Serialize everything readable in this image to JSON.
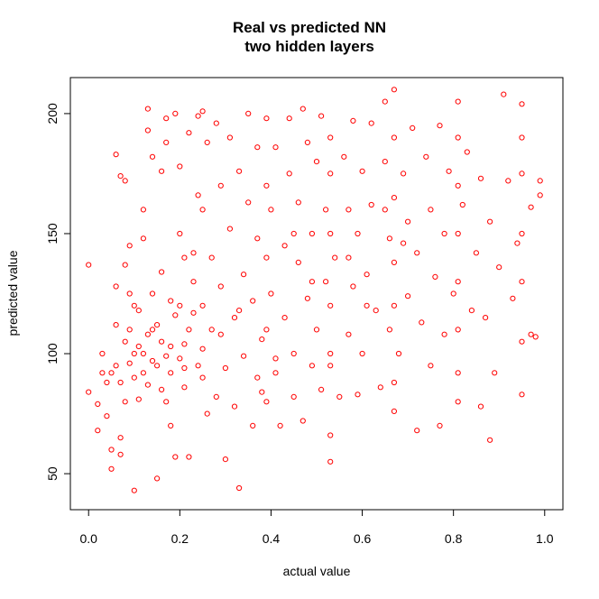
{
  "chart_data": {
    "type": "scatter",
    "title": "Real vs predicted NN",
    "subtitle": "two hidden layers",
    "xlabel": "actual value",
    "ylabel": "predicted value",
    "xlim": [
      -0.04,
      1.04
    ],
    "ylim": [
      35,
      215
    ],
    "xticks": [
      "0.0",
      "0.2",
      "0.4",
      "0.6",
      "0.8",
      "1.0"
    ],
    "yticks": [
      "50",
      "100",
      "150",
      "200"
    ],
    "marker": "open-circle",
    "color": "#ff0000",
    "grid": false,
    "legend": "none",
    "points": [
      [
        0.0,
        137
      ],
      [
        0.0,
        84
      ],
      [
        0.02,
        68
      ],
      [
        0.02,
        79
      ],
      [
        0.03,
        92
      ],
      [
        0.03,
        100
      ],
      [
        0.04,
        74
      ],
      [
        0.04,
        88
      ],
      [
        0.05,
        52
      ],
      [
        0.05,
        60
      ],
      [
        0.06,
        183
      ],
      [
        0.06,
        112
      ],
      [
        0.06,
        128
      ],
      [
        0.07,
        174
      ],
      [
        0.07,
        65
      ],
      [
        0.07,
        58
      ],
      [
        0.08,
        137
      ],
      [
        0.08,
        172
      ],
      [
        0.09,
        145
      ],
      [
        0.09,
        96
      ],
      [
        0.1,
        43
      ],
      [
        0.1,
        120
      ],
      [
        0.11,
        103
      ],
      [
        0.11,
        81
      ],
      [
        0.12,
        160
      ],
      [
        0.12,
        148
      ],
      [
        0.13,
        202
      ],
      [
        0.13,
        193
      ],
      [
        0.14,
        182
      ],
      [
        0.14,
        110
      ],
      [
        0.15,
        48
      ],
      [
        0.15,
        95
      ],
      [
        0.16,
        176
      ],
      [
        0.16,
        134
      ],
      [
        0.17,
        188
      ],
      [
        0.17,
        198
      ],
      [
        0.18,
        70
      ],
      [
        0.18,
        122
      ],
      [
        0.19,
        200
      ],
      [
        0.19,
        57
      ],
      [
        0.2,
        150
      ],
      [
        0.2,
        178
      ],
      [
        0.21,
        104
      ],
      [
        0.21,
        86
      ],
      [
        0.22,
        57
      ],
      [
        0.22,
        192
      ],
      [
        0.23,
        142
      ],
      [
        0.23,
        117
      ],
      [
        0.24,
        199
      ],
      [
        0.24,
        166
      ],
      [
        0.25,
        201
      ],
      [
        0.25,
        160
      ],
      [
        0.25,
        120
      ],
      [
        0.25,
        90
      ],
      [
        0.26,
        75
      ],
      [
        0.26,
        188
      ],
      [
        0.27,
        140
      ],
      [
        0.27,
        110
      ],
      [
        0.28,
        196
      ],
      [
        0.28,
        82
      ],
      [
        0.29,
        170
      ],
      [
        0.29,
        128
      ],
      [
        0.3,
        56
      ],
      [
        0.3,
        94
      ],
      [
        0.31,
        190
      ],
      [
        0.31,
        152
      ],
      [
        0.32,
        115
      ],
      [
        0.32,
        78
      ],
      [
        0.33,
        44
      ],
      [
        0.33,
        176
      ],
      [
        0.34,
        133
      ],
      [
        0.34,
        99
      ],
      [
        0.35,
        200
      ],
      [
        0.35,
        163
      ],
      [
        0.36,
        70
      ],
      [
        0.36,
        122
      ],
      [
        0.37,
        186
      ],
      [
        0.37,
        148
      ],
      [
        0.38,
        106
      ],
      [
        0.38,
        84
      ],
      [
        0.39,
        198
      ],
      [
        0.39,
        170
      ],
      [
        0.39,
        140
      ],
      [
        0.39,
        110
      ],
      [
        0.39,
        80
      ],
      [
        0.4,
        160
      ],
      [
        0.4,
        125
      ],
      [
        0.41,
        92
      ],
      [
        0.41,
        186
      ],
      [
        0.42,
        70
      ],
      [
        0.43,
        145
      ],
      [
        0.43,
        115
      ],
      [
        0.44,
        198
      ],
      [
        0.44,
        175
      ],
      [
        0.45,
        100
      ],
      [
        0.45,
        82
      ],
      [
        0.46,
        163
      ],
      [
        0.46,
        138
      ],
      [
        0.47,
        202
      ],
      [
        0.47,
        72
      ],
      [
        0.48,
        188
      ],
      [
        0.48,
        123
      ],
      [
        0.49,
        150
      ],
      [
        0.49,
        95
      ],
      [
        0.5,
        180
      ],
      [
        0.5,
        110
      ],
      [
        0.51,
        85
      ],
      [
        0.51,
        199
      ],
      [
        0.52,
        160
      ],
      [
        0.52,
        130
      ],
      [
        0.53,
        190
      ],
      [
        0.53,
        175
      ],
      [
        0.53,
        150
      ],
      [
        0.53,
        120
      ],
      [
        0.53,
        95
      ],
      [
        0.53,
        66
      ],
      [
        0.53,
        55
      ],
      [
        0.54,
        140
      ],
      [
        0.55,
        82
      ],
      [
        0.56,
        182
      ],
      [
        0.57,
        160
      ],
      [
        0.57,
        108
      ],
      [
        0.58,
        128
      ],
      [
        0.58,
        197
      ],
      [
        0.59,
        150
      ],
      [
        0.59,
        83
      ],
      [
        0.6,
        176
      ],
      [
        0.6,
        100
      ],
      [
        0.61,
        133
      ],
      [
        0.62,
        196
      ],
      [
        0.62,
        162
      ],
      [
        0.63,
        118
      ],
      [
        0.64,
        86
      ],
      [
        0.65,
        205
      ],
      [
        0.65,
        180
      ],
      [
        0.66,
        148
      ],
      [
        0.66,
        110
      ],
      [
        0.67,
        210
      ],
      [
        0.67,
        190
      ],
      [
        0.67,
        165
      ],
      [
        0.67,
        138
      ],
      [
        0.67,
        120
      ],
      [
        0.67,
        88
      ],
      [
        0.67,
        76
      ],
      [
        0.68,
        100
      ],
      [
        0.69,
        175
      ],
      [
        0.7,
        155
      ],
      [
        0.7,
        124
      ],
      [
        0.71,
        194
      ],
      [
        0.72,
        68
      ],
      [
        0.72,
        142
      ],
      [
        0.73,
        113
      ],
      [
        0.74,
        182
      ],
      [
        0.75,
        160
      ],
      [
        0.75,
        95
      ],
      [
        0.76,
        132
      ],
      [
        0.77,
        195
      ],
      [
        0.77,
        70
      ],
      [
        0.78,
        150
      ],
      [
        0.78,
        108
      ],
      [
        0.79,
        176
      ],
      [
        0.8,
        125
      ],
      [
        0.81,
        205
      ],
      [
        0.81,
        190
      ],
      [
        0.81,
        170
      ],
      [
        0.81,
        150
      ],
      [
        0.81,
        130
      ],
      [
        0.81,
        110
      ],
      [
        0.81,
        92
      ],
      [
        0.81,
        80
      ],
      [
        0.82,
        162
      ],
      [
        0.83,
        184
      ],
      [
        0.84,
        118
      ],
      [
        0.85,
        142
      ],
      [
        0.86,
        173
      ],
      [
        0.86,
        78
      ],
      [
        0.87,
        115
      ],
      [
        0.88,
        64
      ],
      [
        0.88,
        155
      ],
      [
        0.89,
        92
      ],
      [
        0.9,
        136
      ],
      [
        0.91,
        208
      ],
      [
        0.92,
        172
      ],
      [
        0.93,
        123
      ],
      [
        0.94,
        146
      ],
      [
        0.95,
        204
      ],
      [
        0.95,
        190
      ],
      [
        0.95,
        175
      ],
      [
        0.95,
        150
      ],
      [
        0.95,
        130
      ],
      [
        0.95,
        105
      ],
      [
        0.95,
        83
      ],
      [
        0.97,
        108
      ],
      [
        0.97,
        161
      ],
      [
        0.98,
        107
      ],
      [
        0.99,
        172
      ],
      [
        0.99,
        166
      ],
      [
        0.06,
        95
      ],
      [
        0.08,
        105
      ],
      [
        0.1,
        90
      ],
      [
        0.12,
        100
      ],
      [
        0.14,
        97
      ],
      [
        0.16,
        105
      ],
      [
        0.18,
        92
      ],
      [
        0.2,
        98
      ],
      [
        0.22,
        110
      ],
      [
        0.24,
        95
      ],
      [
        0.07,
        88
      ],
      [
        0.09,
        110
      ],
      [
        0.11,
        118
      ],
      [
        0.13,
        87
      ],
      [
        0.15,
        112
      ],
      [
        0.17,
        99
      ],
      [
        0.19,
        116
      ],
      [
        0.21,
        94
      ],
      [
        0.23,
        130
      ],
      [
        0.08,
        80
      ],
      [
        0.1,
        100
      ],
      [
        0.12,
        92
      ],
      [
        0.14,
        125
      ],
      [
        0.16,
        85
      ],
      [
        0.18,
        103
      ],
      [
        0.2,
        120
      ],
      [
        0.05,
        92
      ],
      [
        0.09,
        125
      ],
      [
        0.13,
        108
      ],
      [
        0.17,
        80
      ],
      [
        0.21,
        140
      ],
      [
        0.25,
        102
      ],
      [
        0.29,
        108
      ],
      [
        0.33,
        118
      ],
      [
        0.37,
        90
      ],
      [
        0.41,
        98
      ],
      [
        0.45,
        150
      ],
      [
        0.49,
        130
      ],
      [
        0.53,
        100
      ],
      [
        0.57,
        140
      ],
      [
        0.61,
        120
      ],
      [
        0.65,
        160
      ],
      [
        0.69,
        146
      ]
    ]
  }
}
